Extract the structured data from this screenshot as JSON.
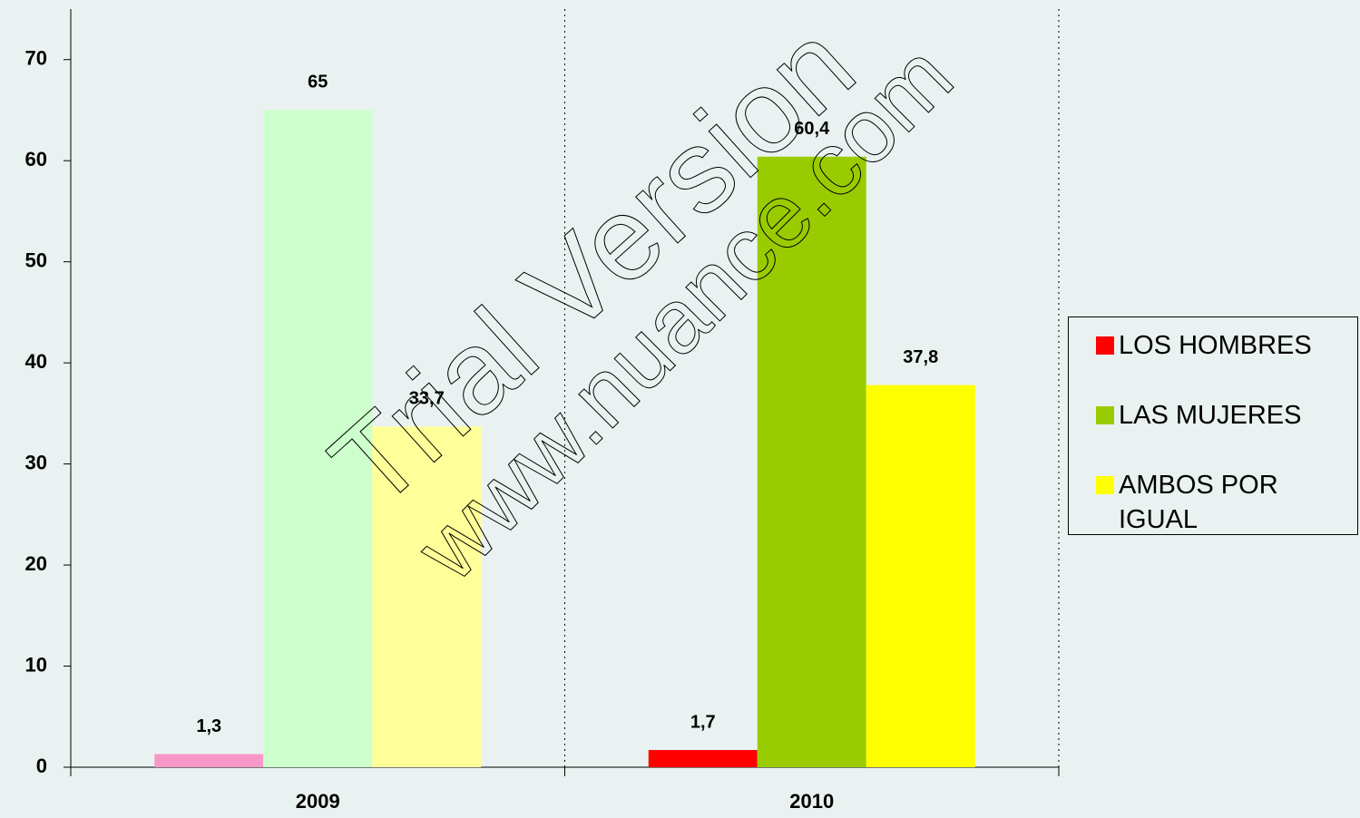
{
  "chart_data": {
    "type": "bar",
    "categories": [
      "2009",
      "2010"
    ],
    "series": [
      {
        "name": "LOS HOMBRES",
        "color": "#ff0000",
        "colors": [
          "#f799c8",
          "#ff0000"
        ],
        "values": [
          1.3,
          1.7
        ],
        "value_labels": [
          "1,3",
          "1,7"
        ]
      },
      {
        "name": "LAS MUJERES",
        "color": "#99cc00",
        "colors": [
          "#ccffcc",
          "#99cc00"
        ],
        "values": [
          65,
          60.4
        ],
        "value_labels": [
          "65",
          "60,4"
        ]
      },
      {
        "name": "AMBOS POR IGUAL",
        "color": "#ffff00",
        "colors": [
          "#ffff99",
          "#ffff00"
        ],
        "values": [
          33.7,
          37.8
        ],
        "value_labels": [
          "33,7",
          "37,8"
        ]
      }
    ],
    "ylim": [
      0,
      75
    ],
    "yticks": [
      0,
      10,
      20,
      30,
      40,
      50,
      60,
      70
    ],
    "legend": "right",
    "watermark": [
      "Trial Version",
      "www.nuance.com"
    ]
  }
}
